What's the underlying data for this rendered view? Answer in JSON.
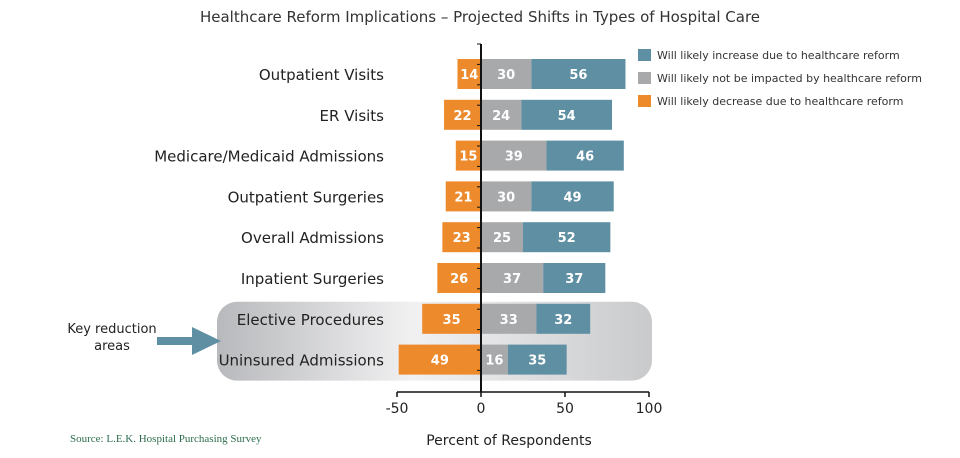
{
  "colors": {
    "increase": "#5f8fa3",
    "neutral": "#a8a9ab",
    "decrease": "#ed8a2b",
    "highlight": "#c9cacc",
    "arrow": "#5f8fa3",
    "source": "#2e6e4e"
  },
  "source_text": "Source: L.E.K. Hospital Purchasing Survey",
  "annotation": {
    "lines": [
      "Key reduction",
      "areas"
    ]
  },
  "chart_data": {
    "type": "bar",
    "orientation": "horizontal",
    "stacked": true,
    "diverging": true,
    "title": "Healthcare Reform Implications – Projected Shifts in Types of Hospital Care",
    "xlabel": "Percent of Respondents",
    "ylabel": "",
    "xlim": [
      -50,
      100
    ],
    "xticks": [
      -50,
      0,
      50,
      100
    ],
    "grid": false,
    "legend_position": "top-right",
    "categories": [
      "Outpatient Visits",
      "ER Visits",
      "Medicare/Medicaid Admissions",
      "Outpatient Surgeries",
      "Overall Admissions",
      "Inpatient Surgeries",
      "Elective Procedures",
      "Uninsured Admissions"
    ],
    "highlighted_categories": [
      "Elective Procedures",
      "Uninsured Admissions"
    ],
    "series": [
      {
        "name": "Will likely increase due to healthcare reform",
        "color": "#5f8fa3",
        "values": [
          56,
          54,
          46,
          49,
          52,
          37,
          32,
          35
        ]
      },
      {
        "name": "Will likely not be impacted by healthcare reform",
        "color": "#a8a9ab",
        "values": [
          30,
          24,
          39,
          30,
          25,
          37,
          33,
          16
        ]
      },
      {
        "name": "Will likely decrease due to healthcare reform",
        "color": "#ed8a2b",
        "values": [
          14,
          22,
          15,
          21,
          23,
          26,
          35,
          49
        ]
      }
    ]
  }
}
